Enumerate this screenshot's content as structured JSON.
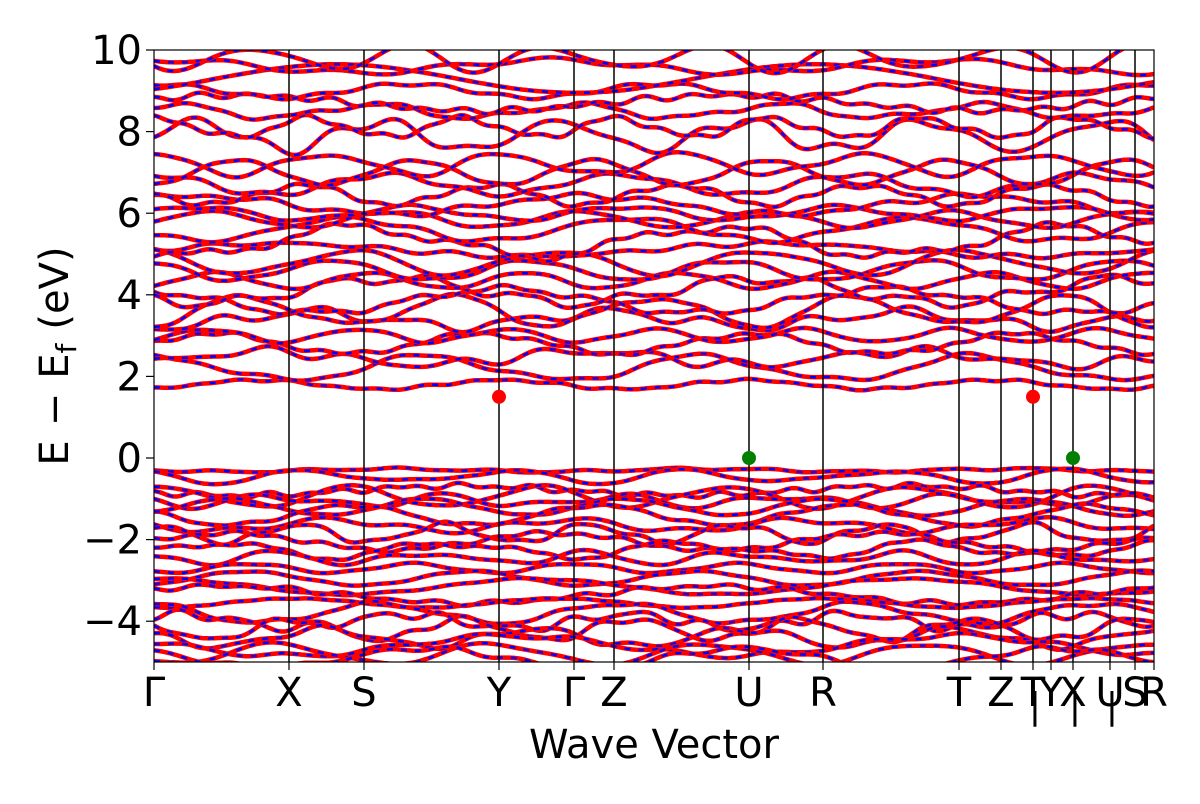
{
  "chart_data": {
    "type": "line",
    "title": "",
    "xlabel": "Wave Vector",
    "ylabel_parts": {
      "e": "E",
      "minus": "−",
      "ef": "E",
      "ef_sub": "f",
      "unit": "(eV)"
    },
    "ylim": [
      -5,
      10
    ],
    "y_ticks": [
      -4,
      -2,
      0,
      2,
      4,
      6,
      8,
      10
    ],
    "y_tick_labels": [
      "−4",
      "−2",
      "0",
      "2",
      "4",
      "6",
      "8",
      "10"
    ],
    "xlim": [
      0,
      1
    ],
    "k_points": [
      {
        "label": "Γ",
        "x": 0.0
      },
      {
        "label": "X",
        "x": 0.135
      },
      {
        "label": "S",
        "x": 0.21
      },
      {
        "label": "Y",
        "x": 0.345
      },
      {
        "label": "Γ",
        "x": 0.42
      },
      {
        "label": "Z",
        "x": 0.46
      },
      {
        "label": "U",
        "x": 0.595
      },
      {
        "label": "R",
        "x": 0.669
      },
      {
        "label": "T",
        "x": 0.805
      },
      {
        "label": "Z",
        "x": 0.847
      },
      {
        "label": "T",
        "x": 0.879
      },
      {
        "label": "Y",
        "x": 0.897
      },
      {
        "label": "X",
        "x": 0.919
      },
      {
        "label": "U",
        "x": 0.956
      },
      {
        "label": "S",
        "x": 0.981
      },
      {
        "label": "R",
        "x": 1.0
      }
    ],
    "k_label_extra_marks": [
      "|",
      "|",
      "|"
    ],
    "grid": false,
    "series_colors": {
      "spin_up": "#ff0000",
      "spin_down": "#0000ff"
    },
    "markers": [
      {
        "name": "cbm",
        "x": 0.345,
        "y": 1.5,
        "color": "#ff0000"
      },
      {
        "name": "cbm",
        "x": 0.879,
        "y": 1.5,
        "color": "#ff0000"
      },
      {
        "name": "vbm",
        "x": 0.595,
        "y": 0.0,
        "color": "#008000"
      },
      {
        "name": "vbm",
        "x": 0.919,
        "y": 0.0,
        "color": "#008000"
      }
    ],
    "bands": {
      "valence_levels": [
        -0.3,
        -0.45,
        -0.8,
        -0.95,
        -1.05,
        -1.2,
        -1.4,
        -1.65,
        -1.85,
        -2.05,
        -2.25,
        -2.45,
        -2.7,
        -2.95,
        -3.15,
        -3.35,
        -3.55,
        -3.8,
        -4.0,
        -4.2,
        -4.4,
        -4.6,
        -4.8,
        -4.9
      ],
      "conduction_levels": [
        1.8,
        2.2,
        2.45,
        2.8,
        3.0,
        3.4,
        3.6,
        3.85,
        4.1,
        4.35,
        4.6,
        4.8,
        5.1,
        5.3,
        5.6,
        5.85,
        6.0,
        6.2,
        6.45,
        6.7,
        7.0,
        7.2,
        7.9,
        8.1,
        8.5,
        8.7,
        9.0,
        9.3,
        9.6,
        9.8
      ]
    }
  }
}
